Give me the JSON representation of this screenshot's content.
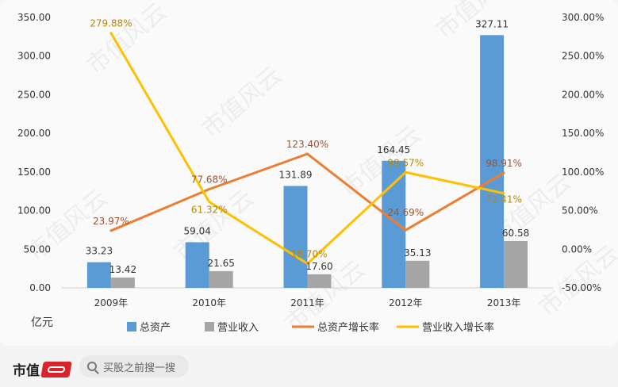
{
  "chart_data": {
    "type": "bar",
    "categories": [
      "2009年",
      "2010年",
      "2011年",
      "2012年",
      "2013年"
    ],
    "series": [
      {
        "name": "总资产",
        "kind": "bar",
        "axis": "left",
        "color": "#5b9bd5",
        "values": [
          33.23,
          59.04,
          131.89,
          164.45,
          327.11
        ],
        "labels": [
          "33.23",
          "59.04",
          "131.89",
          "164.45",
          "327.11"
        ]
      },
      {
        "name": "营业收入",
        "kind": "bar",
        "axis": "left",
        "color": "#a5a5a5",
        "values": [
          13.42,
          21.65,
          17.6,
          35.13,
          60.58
        ],
        "labels": [
          "13.42",
          "21.65",
          "17.60",
          "35.13",
          "60.58"
        ]
      },
      {
        "name": "总资产增长率",
        "kind": "line",
        "axis": "right",
        "color": "#ed7d31",
        "values": [
          23.97,
          77.68,
          123.4,
          24.69,
          98.91
        ],
        "labels": [
          "23.97%",
          "77.68%",
          "123.40%",
          "24.69%",
          "98.91%"
        ]
      },
      {
        "name": "营业收入增长率",
        "kind": "line",
        "axis": "right",
        "color": "#ffc000",
        "values": [
          279.88,
          61.32,
          -18.7,
          99.57,
          72.41
        ],
        "labels": [
          "279.88%",
          "61.32%",
          "-18.70%",
          "99.57%",
          "72.41%"
        ]
      }
    ],
    "y_left": {
      "min": 0,
      "max": 350,
      "step": 50,
      "ticks": [
        "0.00",
        "50.00",
        "100.00",
        "150.00",
        "200.00",
        "250.00",
        "300.00",
        "350.00"
      ]
    },
    "y_right": {
      "min": -50,
      "max": 300,
      "step": 50,
      "ticks": [
        "-50.00%",
        "0.00%",
        "50.00%",
        "100.00%",
        "150.00%",
        "200.00%",
        "250.00%",
        "300.00%"
      ]
    },
    "ylabel": "亿元",
    "legend_position": "bottom",
    "grid": false
  },
  "watermark": "市值风云",
  "footer": {
    "brand": "市值",
    "search_placeholder": "买股之前搜一搜"
  }
}
